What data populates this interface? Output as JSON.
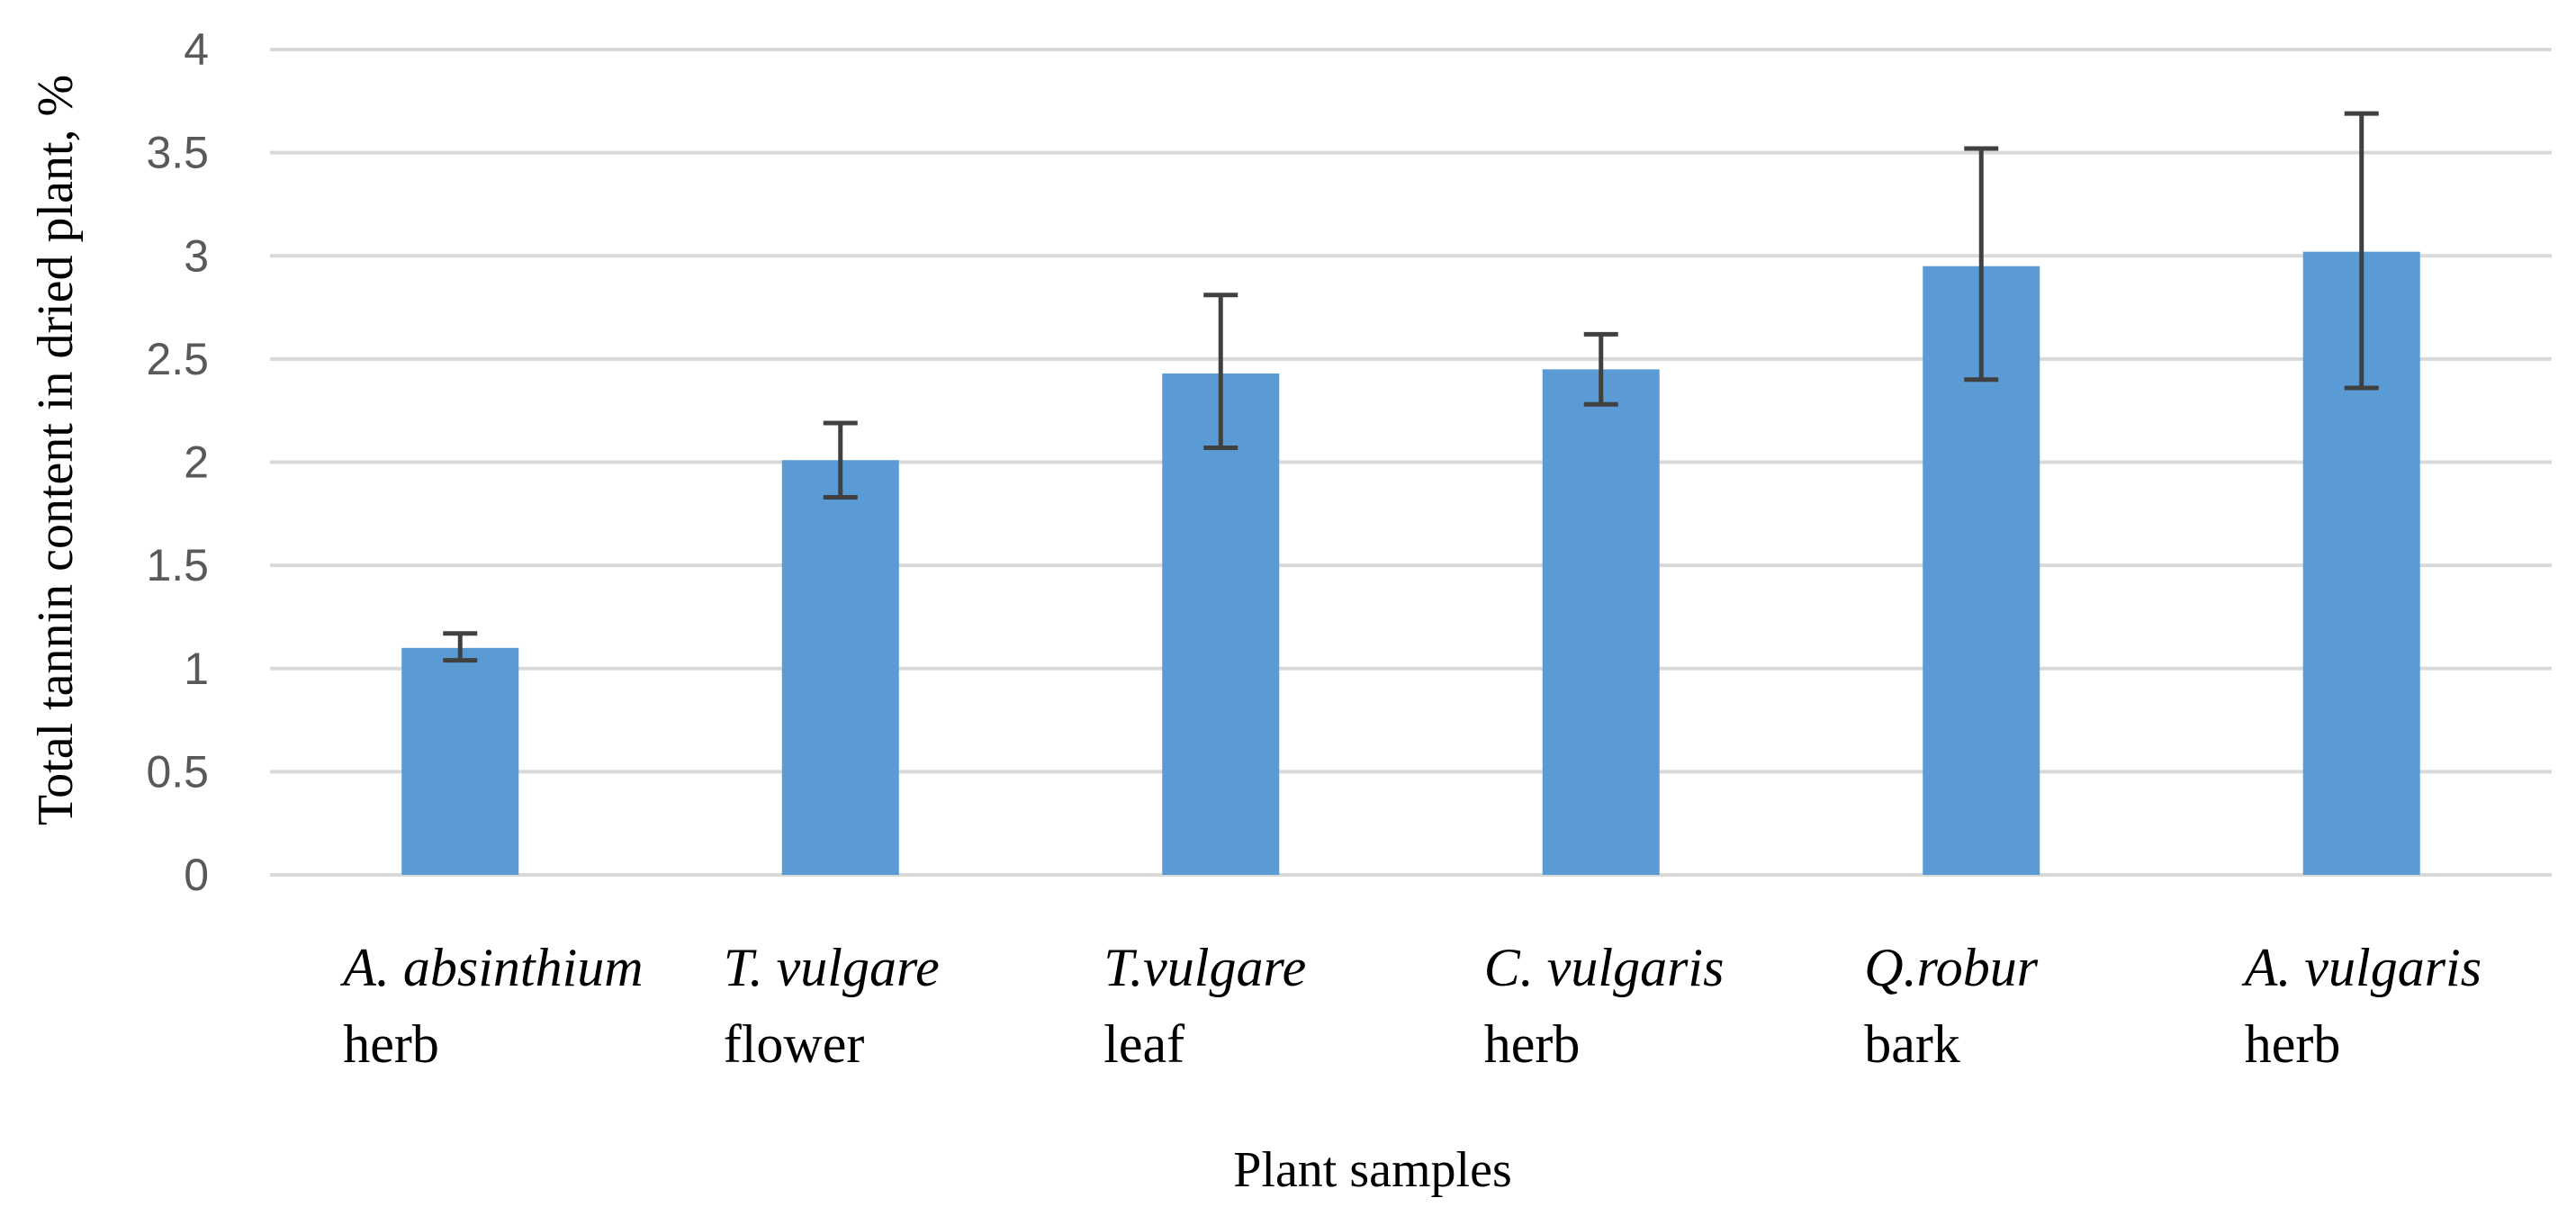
{
  "chart_data": {
    "type": "bar",
    "title": "",
    "xlabel": "Plant samples",
    "ylabel": "Total tannin content in dried plant, %",
    "ylim": [
      0,
      4
    ],
    "yticks": [
      "0",
      "0.5",
      "1",
      "1.5",
      "2",
      "2.5",
      "3",
      "3.5",
      "4"
    ],
    "grid": true,
    "legend": "none",
    "categories": [
      {
        "species": "A. absinthium",
        "part": "herb"
      },
      {
        "species": "T. vulgare",
        "part": "flower"
      },
      {
        "species": "T.vulgare",
        "part": "leaf"
      },
      {
        "species": "C. vulgaris",
        "part": "herb"
      },
      {
        "species": "Q.robur",
        "part": "bark"
      },
      {
        "species": "A. vulgaris",
        "part": "herb"
      }
    ],
    "series": [
      {
        "name": "Total tannin content",
        "values": [
          1.1,
          2.01,
          2.43,
          2.45,
          2.95,
          3.02
        ],
        "error_low": [
          1.04,
          1.83,
          2.07,
          2.28,
          2.4,
          2.36
        ],
        "error_high": [
          1.17,
          2.19,
          2.81,
          2.62,
          3.52,
          3.69
        ],
        "color": "#5B9BD5"
      }
    ],
    "colors": {
      "bar": "#5B9BD5",
      "gridline": "#D9D9D9",
      "errorbar": "#404040",
      "tick_text": "#595959"
    }
  }
}
